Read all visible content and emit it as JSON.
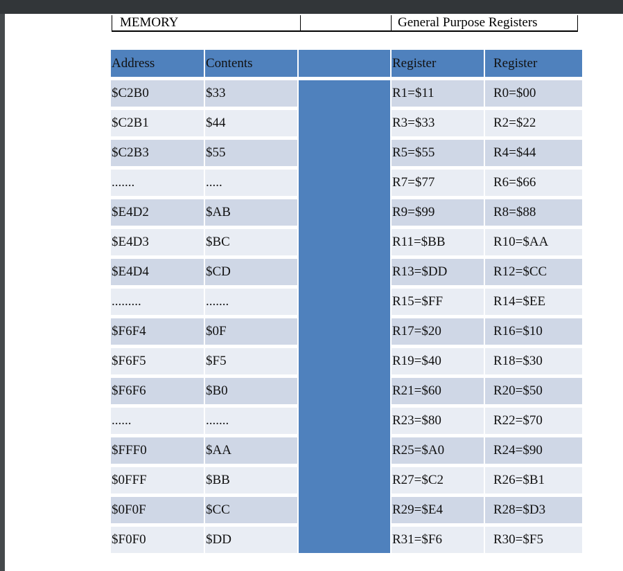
{
  "header": {
    "memory": "MEMORY",
    "blank": "",
    "registers": "General Purpose Registers"
  },
  "columns": [
    "Address",
    "Contents",
    "",
    "Register",
    "Register"
  ],
  "rows": [
    [
      "$C2B0",
      "$33",
      "R1=$11",
      "R0=$00"
    ],
    [
      "$C2B1",
      "$44",
      "R3=$33",
      "R2=$22"
    ],
    [
      "$C2B3",
      "$55",
      "R5=$55",
      "R4=$44"
    ],
    [
      ".......",
      ".....",
      "R7=$77",
      "R6=$66"
    ],
    [
      "$E4D2",
      "$AB",
      "R9=$99",
      "R8=$88"
    ],
    [
      "$E4D3",
      "$BC",
      "R11=$BB",
      "R10=$AA"
    ],
    [
      "$E4D4",
      "$CD",
      "R13=$DD",
      "R12=$CC"
    ],
    [
      ".........",
      ".......",
      "R15=$FF",
      "R14=$EE"
    ],
    [
      "$F6F4",
      "$0F",
      "R17=$20",
      "R16=$10"
    ],
    [
      "$F6F5",
      "$F5",
      "R19=$40",
      "R18=$30"
    ],
    [
      "$F6F6",
      "$B0",
      "R21=$60",
      "R20=$50"
    ],
    [
      "......",
      ".......",
      "R23=$80",
      "R22=$70"
    ],
    [
      "$FFF0",
      "$AA",
      "R25=$A0",
      "R24=$90"
    ],
    [
      "$0FFF",
      "$BB",
      "R27=$C2",
      "R26=$B1"
    ],
    [
      "$0F0F",
      "$CC",
      "R29=$E4",
      "R28=$D3"
    ],
    [
      "$F0F0",
      "$DD",
      "R31=$F6",
      "R30=$F5"
    ]
  ],
  "colors": {
    "header": "#4f81bd",
    "row_dark": "#cfd7e6",
    "row_light": "#e9edf4"
  }
}
